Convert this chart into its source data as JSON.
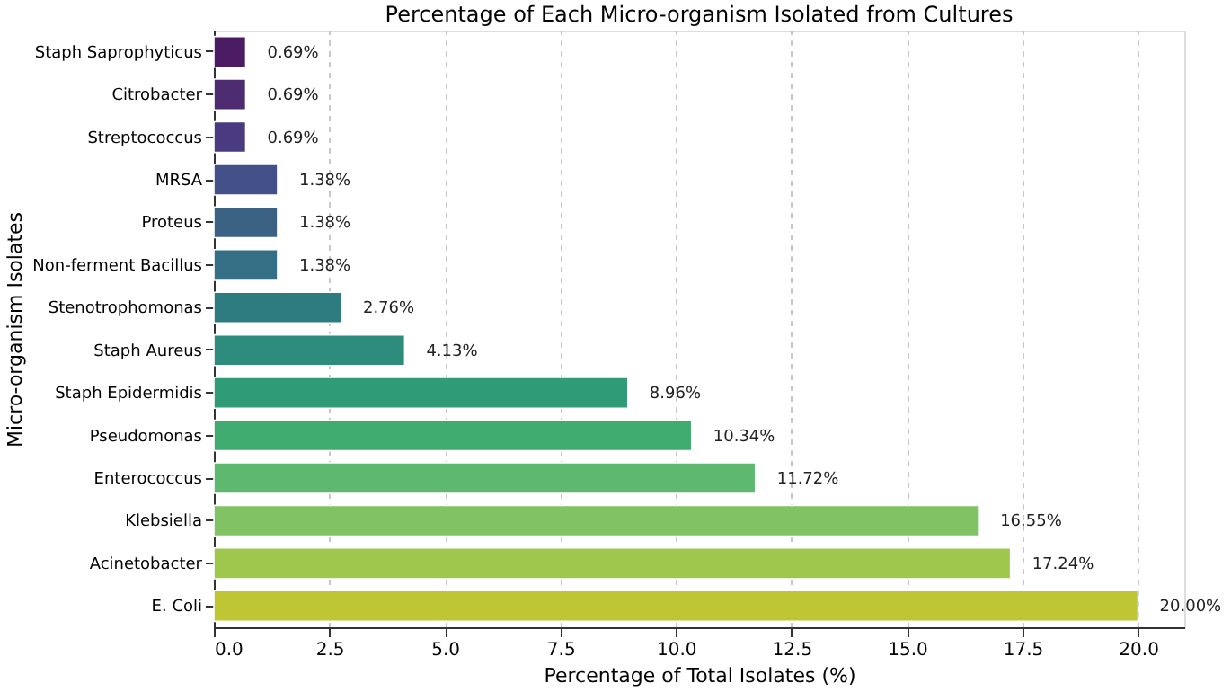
{
  "chart_data": {
    "type": "bar",
    "orientation": "horizontal",
    "title": "Percentage of Each Micro-organism Isolated from Cultures",
    "xlabel": "Percentage of Total Isolates (%)",
    "ylabel": "Micro-organism Isolates",
    "categories": [
      "Staph Saprophyticus",
      "Citrobacter",
      "Streptococcus",
      "MRSA",
      "Proteus",
      "Non-ferment Bacillus",
      "Stenotrophomonas",
      "Staph Aureus",
      "Staph Epidermidis",
      "Pseudomonas",
      "Enterococcus",
      "Klebsiella",
      "Acinetobacter",
      "E. Coli"
    ],
    "values": [
      0.69,
      0.69,
      0.69,
      1.38,
      1.38,
      1.38,
      2.76,
      4.13,
      8.96,
      10.34,
      11.72,
      16.55,
      17.24,
      20.0
    ],
    "value_labels": [
      "0.69%",
      "0.69%",
      "0.69%",
      "1.38%",
      "1.38%",
      "1.38%",
      "2.76%",
      "4.13%",
      "8.96%",
      "10.34%",
      "11.72%",
      "16.55%",
      "17.24%",
      "20.00%"
    ],
    "colors": [
      "#4b1c63",
      "#4d2c72",
      "#4a3b80",
      "#43508a",
      "#3b6283",
      "#356f86",
      "#2f7c80",
      "#2d8c7c",
      "#2f9b77",
      "#3fab6f",
      "#5fb870",
      "#81c364",
      "#9fc64d",
      "#bec633"
    ],
    "xlim": [
      0,
      21
    ],
    "xticks": [
      {
        "value": 0,
        "label": "0.0"
      },
      {
        "value": 2.5,
        "label": "2.5"
      },
      {
        "value": 5,
        "label": "5.0"
      },
      {
        "value": 7.5,
        "label": "7.5"
      },
      {
        "value": 10,
        "label": "10.0"
      },
      {
        "value": 12.5,
        "label": "12.5"
      },
      {
        "value": 15,
        "label": "15.0"
      },
      {
        "value": 17.5,
        "label": "17.5"
      },
      {
        "value": 20,
        "label": "20.0"
      }
    ],
    "grid": "x"
  }
}
